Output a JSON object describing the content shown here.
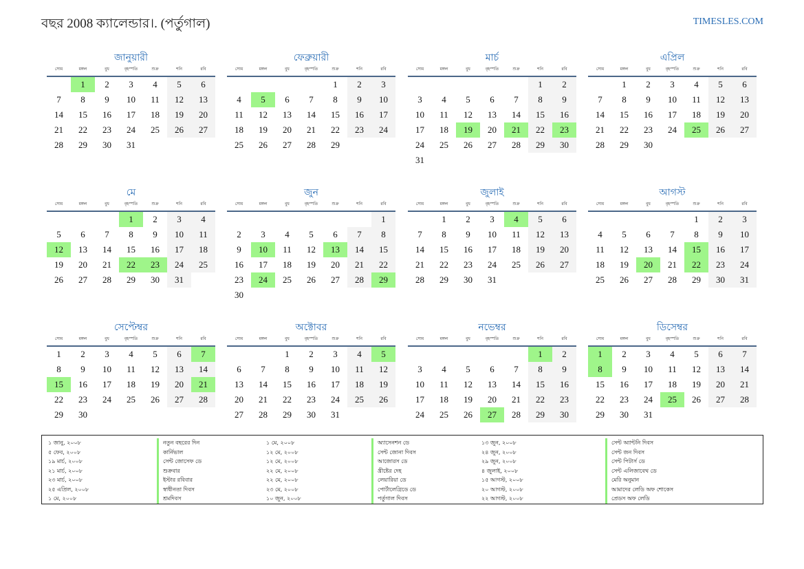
{
  "header": {
    "title": "বছর 2008 ক্যালেন্ডার।. (পর্তুগাল)",
    "site": "TIMESLES.COM"
  },
  "colors": {
    "accent": "#2a6db5",
    "holiday": "#9ff58a",
    "weekend": "#f3f3f3"
  },
  "weekdays": [
    "সোম",
    "মঙ্গল",
    "বুধ",
    "বৃহস্পতি",
    "শুক্র",
    "শনি",
    "রবি"
  ],
  "months": [
    {
      "name": "জানুয়ারী",
      "weeks": [
        [
          null,
          1,
          2,
          3,
          4,
          5,
          6
        ],
        [
          7,
          8,
          9,
          10,
          11,
          12,
          13
        ],
        [
          14,
          15,
          16,
          17,
          18,
          19,
          20
        ],
        [
          21,
          22,
          23,
          24,
          25,
          26,
          27
        ],
        [
          28,
          29,
          30,
          31
        ]
      ],
      "holidays": [
        1
      ]
    },
    {
      "name": "ফেব্রুয়ারী",
      "weeks": [
        [
          null,
          null,
          null,
          null,
          1,
          2,
          3
        ],
        [
          4,
          5,
          6,
          7,
          8,
          9,
          10
        ],
        [
          11,
          12,
          13,
          14,
          15,
          16,
          17
        ],
        [
          18,
          19,
          20,
          21,
          22,
          23,
          24
        ],
        [
          25,
          26,
          27,
          28,
          29
        ]
      ],
      "holidays": [
        5
      ]
    },
    {
      "name": "মার্চ",
      "weeks": [
        [
          null,
          null,
          null,
          null,
          null,
          1,
          2
        ],
        [
          3,
          4,
          5,
          6,
          7,
          8,
          9
        ],
        [
          10,
          11,
          12,
          13,
          14,
          15,
          16
        ],
        [
          17,
          18,
          19,
          20,
          21,
          22,
          23
        ],
        [
          24,
          25,
          26,
          27,
          28,
          29,
          30
        ],
        [
          31
        ]
      ],
      "holidays": [
        19,
        21,
        23
      ]
    },
    {
      "name": "এপ্রিল",
      "weeks": [
        [
          null,
          1,
          2,
          3,
          4,
          5,
          6
        ],
        [
          7,
          8,
          9,
          10,
          11,
          12,
          13
        ],
        [
          14,
          15,
          16,
          17,
          18,
          19,
          20
        ],
        [
          21,
          22,
          23,
          24,
          25,
          26,
          27
        ],
        [
          28,
          29,
          30
        ]
      ],
      "holidays": [
        25
      ]
    },
    {
      "name": "মে",
      "weeks": [
        [
          null,
          null,
          null,
          1,
          2,
          3,
          4
        ],
        [
          5,
          6,
          7,
          8,
          9,
          10,
          11
        ],
        [
          12,
          13,
          14,
          15,
          16,
          17,
          18
        ],
        [
          19,
          20,
          21,
          22,
          23,
          24,
          25
        ],
        [
          26,
          27,
          28,
          29,
          30,
          31
        ]
      ],
      "holidays": [
        1,
        12,
        22,
        23
      ]
    },
    {
      "name": "জুন",
      "weeks": [
        [
          null,
          null,
          null,
          null,
          null,
          null,
          1
        ],
        [
          2,
          3,
          4,
          5,
          6,
          7,
          8
        ],
        [
          9,
          10,
          11,
          12,
          13,
          14,
          15
        ],
        [
          16,
          17,
          18,
          19,
          20,
          21,
          22
        ],
        [
          23,
          24,
          25,
          26,
          27,
          28,
          29
        ],
        [
          30
        ]
      ],
      "holidays": [
        10,
        13,
        24,
        29
      ]
    },
    {
      "name": "জুলাই",
      "weeks": [
        [
          null,
          1,
          2,
          3,
          4,
          5,
          6
        ],
        [
          7,
          8,
          9,
          10,
          11,
          12,
          13
        ],
        [
          14,
          15,
          16,
          17,
          18,
          19,
          20
        ],
        [
          21,
          22,
          23,
          24,
          25,
          26,
          27
        ],
        [
          28,
          29,
          30,
          31
        ]
      ],
      "holidays": [
        4
      ]
    },
    {
      "name": "আগস্ট",
      "weeks": [
        [
          null,
          null,
          null,
          null,
          1,
          2,
          3
        ],
        [
          4,
          5,
          6,
          7,
          8,
          9,
          10
        ],
        [
          11,
          12,
          13,
          14,
          15,
          16,
          17
        ],
        [
          18,
          19,
          20,
          21,
          22,
          23,
          24
        ],
        [
          25,
          26,
          27,
          28,
          29,
          30,
          31
        ]
      ],
      "holidays": [
        15,
        20,
        22
      ]
    },
    {
      "name": "সেপ্টেম্বর",
      "weeks": [
        [
          1,
          2,
          3,
          4,
          5,
          6,
          7
        ],
        [
          8,
          9,
          10,
          11,
          12,
          13,
          14
        ],
        [
          15,
          16,
          17,
          18,
          19,
          20,
          21
        ],
        [
          22,
          23,
          24,
          25,
          26,
          27,
          28
        ],
        [
          29,
          30
        ]
      ],
      "holidays": [
        7,
        15,
        21
      ]
    },
    {
      "name": "অক্টোবর",
      "weeks": [
        [
          null,
          null,
          1,
          2,
          3,
          4,
          5
        ],
        [
          6,
          7,
          8,
          9,
          10,
          11,
          12
        ],
        [
          13,
          14,
          15,
          16,
          17,
          18,
          19
        ],
        [
          20,
          21,
          22,
          23,
          24,
          25,
          26
        ],
        [
          27,
          28,
          29,
          30,
          31
        ]
      ],
      "holidays": [
        5
      ]
    },
    {
      "name": "নভেম্বর",
      "weeks": [
        [
          null,
          null,
          null,
          null,
          null,
          1,
          2
        ],
        [
          3,
          4,
          5,
          6,
          7,
          8,
          9
        ],
        [
          10,
          11,
          12,
          13,
          14,
          15,
          16
        ],
        [
          17,
          18,
          19,
          20,
          21,
          22,
          23
        ],
        [
          24,
          25,
          26,
          27,
          28,
          29,
          30
        ]
      ],
      "holidays": [
        1,
        27
      ]
    },
    {
      "name": "ডিসেম্বর",
      "weeks": [
        [
          1,
          2,
          3,
          4,
          5,
          6,
          7
        ],
        [
          8,
          9,
          10,
          11,
          12,
          13,
          14
        ],
        [
          15,
          16,
          17,
          18,
          19,
          20,
          21
        ],
        [
          22,
          23,
          24,
          25,
          26,
          27,
          28
        ],
        [
          29,
          30,
          31
        ]
      ],
      "holidays": [
        1,
        8,
        25
      ]
    }
  ],
  "legend": [
    {
      "dates": [
        "১ জানু, ২০০৮",
        "৫ ফেব, ২০০৮",
        "১৯ মার্চ, ২০০৮",
        "২১ মার্চ, ২০০৮",
        "২৩ মার্চ, ২০০৮",
        "২৫ এপ্রিল, ২০০৮",
        "১ মে, ২০০৮"
      ],
      "names": [
        "নতুন বছরের দিন",
        "কার্নিভাল",
        "সেন্ট জোসেফ ডে",
        "শুক্রবার",
        "ইস্টার রবিবার",
        "স্বাধীনতা দিবস",
        "শ্রমদিবস"
      ]
    },
    {
      "dates": [
        "১ মে, ২০০৮",
        "১২ মে, ২০০৮",
        "১২ মে, ২০০৮",
        "২২ মে, ২০০৮",
        "২২ মে, ২০০৮",
        "২৩ মে, ২০০৮",
        "১০ জুন, ২০০৮"
      ],
      "names": [
        "অ্যাসেনশন ডে",
        "সেন্ট জোনা দিবস",
        "আজোরস ডে",
        "খ্রীষ্টের দেহ",
        "লেয়ারিয়া ডে",
        "পোর্টালেগ্রিডে ডে",
        "পর্তুগাল দিবস"
      ]
    },
    {
      "dates": [
        "১৩ জুন, ২০০৮",
        "২৪ জুন, ২০০৮",
        "২৯ জুন, ২০০৮",
        "৪ জুলাই, ২০০৮",
        "১৫ আগস্ট, ২০০৮",
        "২০ আগস্ট, ২০০৮",
        "২২ আগস্ট, ২০০৮"
      ],
      "names": [
        "সেন্ট অ্যান্টনি দিবস",
        "সেন্ট জন দিবস",
        "সেন্ট পিটার্স ডে",
        "সেন্ট এলিজাবেথ ডে",
        "মেরি অনুমান",
        "আমাদের লেডি অফ শোকেস",
        "প্রেডস অফ লেডি"
      ]
    }
  ]
}
